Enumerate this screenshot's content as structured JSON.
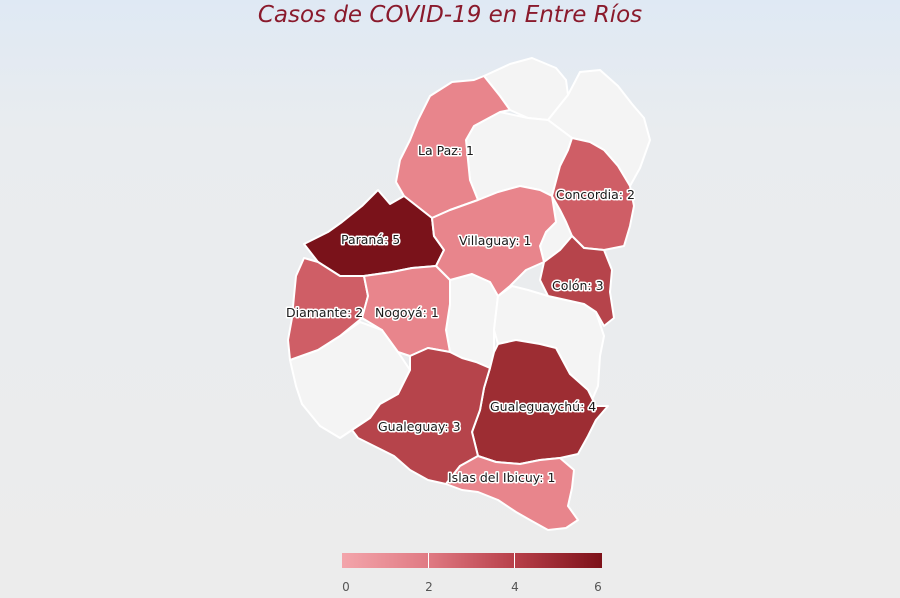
{
  "title": "Casos de COVID-19 en Entre Ríos",
  "map": {
    "colors": {
      "none": "#f4f4f4",
      "c1": "#e8858c",
      "c2": "#cf5e66",
      "c3": "#b6444b",
      "c4": "#9d2d33",
      "c5": "#7a121a"
    },
    "departments": [
      {
        "name": "La Paz",
        "cases": 1,
        "label": "La Paz: 1"
      },
      {
        "name": "Paraná",
        "cases": 5,
        "label": "Paraná: 5"
      },
      {
        "name": "Villaguay",
        "cases": 1,
        "label": "Villaguay: 1"
      },
      {
        "name": "Concordia",
        "cases": 2,
        "label": "Concordia: 2"
      },
      {
        "name": "Colón",
        "cases": 3,
        "label": "Colón: 3"
      },
      {
        "name": "Diamante",
        "cases": 2,
        "label": "Diamante: 2"
      },
      {
        "name": "Nogoyá",
        "cases": 1,
        "label": "Nogoyá: 1"
      },
      {
        "name": "Gualeguaychú",
        "cases": 4,
        "label": "Gualeguaychú: 4"
      },
      {
        "name": "Gualeguay",
        "cases": 3,
        "label": "Gualeguay: 3"
      },
      {
        "name": "Islas del Ibicuy",
        "cases": 1,
        "label": "Islas del Ibicuy: 1"
      }
    ]
  },
  "legend": {
    "min": 0,
    "max": 6,
    "ticks": [
      "0",
      "2",
      "4",
      "6"
    ]
  }
}
